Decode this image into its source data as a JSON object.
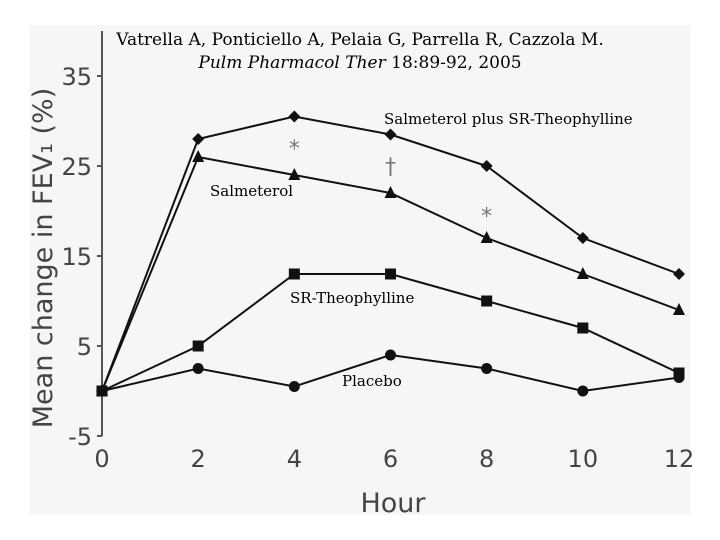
{
  "citation": {
    "authors": "Vatrella A, Ponticiello A, Pelaia G, Parrella R, Cazzola M.",
    "journal": "Pulm Pharmacol Ther",
    "volume_pages": " 18:89-92, 2005"
  },
  "chart_data": {
    "type": "line",
    "title": "",
    "xlabel": "Hour",
    "ylabel": "Mean change in FEV₁ (%)",
    "x": [
      0,
      2,
      4,
      6,
      8,
      10,
      12
    ],
    "x_ticks": [
      "0",
      "2",
      "4",
      "6",
      "8",
      "10",
      "12"
    ],
    "y_ticks": [
      "-5",
      "5",
      "15",
      "25",
      "35"
    ],
    "xlim": [
      0,
      12
    ],
    "ylim": [
      -5,
      40
    ],
    "grid": false,
    "legend": "inline labels",
    "series": [
      {
        "name": "Salmeterol plus SR-Theophylline",
        "marker": "diamond",
        "values": [
          0,
          28,
          30.5,
          28.5,
          25,
          17,
          13
        ]
      },
      {
        "name": "Salmeterol",
        "marker": "triangle",
        "values": [
          0,
          26,
          24,
          22,
          17,
          13,
          9
        ]
      },
      {
        "name": "SR-Theophylline",
        "marker": "square",
        "values": [
          0,
          5,
          13,
          13,
          10,
          7,
          2
        ]
      },
      {
        "name": "Placebo",
        "marker": "circle",
        "values": [
          0,
          2.5,
          0.5,
          4,
          2.5,
          0,
          1.5
        ]
      }
    ],
    "annotations": [
      {
        "text": "*",
        "x": 4,
        "y": 27
      },
      {
        "text": "†",
        "x": 6,
        "y": 25
      },
      {
        "text": "*",
        "x": 8,
        "y": 19.5
      }
    ]
  }
}
